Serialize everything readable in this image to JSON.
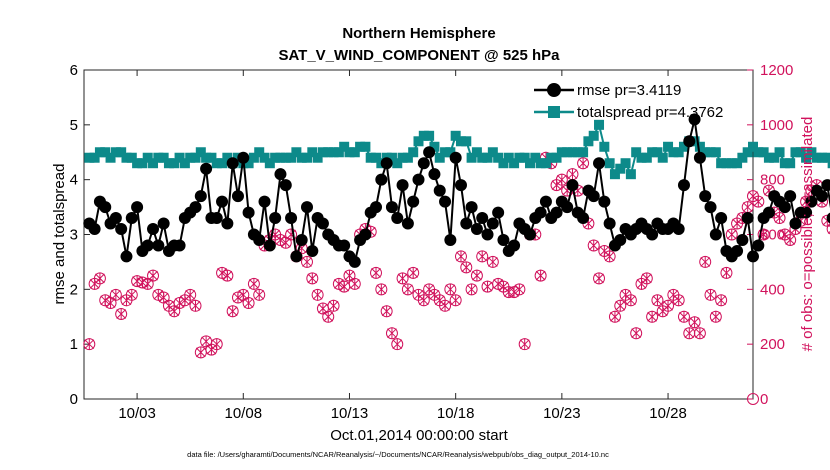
{
  "chart_data": {
    "type": "line",
    "title": "Northern Hemisphere",
    "subtitle": "SAT_V_WIND_COMPONENT @ 525 hPa",
    "xlabel": "Oct.01,2014 00:00:00 start",
    "ylabel": "rmse and totalspread",
    "ylabel_right": "# of obs: o=possible; ×=assimilated",
    "xlim": [
      0.5,
      32.0
    ],
    "ylim": [
      0,
      6
    ],
    "ylim_right": [
      0,
      1200
    ],
    "x_ticks": [
      3,
      8,
      13,
      18,
      23,
      28
    ],
    "x_tick_labels": [
      "10/03",
      "10/08",
      "10/13",
      "10/18",
      "10/23",
      "10/28"
    ],
    "y_ticks": [
      0,
      1,
      2,
      3,
      4,
      5,
      6
    ],
    "y_tick_labels": [
      "0",
      "1",
      "2",
      "3",
      "4",
      "5",
      "6"
    ],
    "y_right_ticks": [
      0,
      200,
      400,
      600,
      800,
      1000,
      1200
    ],
    "y_right_tick_labels": [
      "0",
      "200",
      "400",
      "600",
      "800",
      "1000",
      "1200"
    ],
    "time_step_days": 0.25,
    "time_start": 0.75,
    "series": [
      {
        "name": "rmse",
        "legend": "rmse pr=3.4119",
        "color": "#000000",
        "marker": "circle",
        "axis": "left",
        "values": [
          3.2,
          3.1,
          3.6,
          3.5,
          3.2,
          3.3,
          3.1,
          2.6,
          3.3,
          3.5,
          2.7,
          2.8,
          3.1,
          2.8,
          3.2,
          2.7,
          2.8,
          2.8,
          3.3,
          3.4,
          3.5,
          3.7,
          4.2,
          3.3,
          3.3,
          3.6,
          3.2,
          4.3,
          3.7,
          4.4,
          3.4,
          3.0,
          2.9,
          3.6,
          2.8,
          3.3,
          4.1,
          3.9,
          3.3,
          2.6,
          2.9,
          3.5,
          2.7,
          3.3,
          3.2,
          3.0,
          2.9,
          2.8,
          2.8,
          2.6,
          2.5,
          2.9,
          3.0,
          3.4,
          3.5,
          4.0,
          4.3,
          3.5,
          3.3,
          3.9,
          3.2,
          3.6,
          4.0,
          4.3,
          4.5,
          4.1,
          3.8,
          3.6,
          2.9,
          4.4,
          3.9,
          3.2,
          3.5,
          3.1,
          3.3,
          3.0,
          3.2,
          3.4,
          2.9,
          2.7,
          2.8,
          3.2,
          3.1,
          3.0,
          3.3,
          3.4,
          3.6,
          3.3,
          3.4,
          3.6,
          3.5,
          3.9,
          3.4,
          3.3,
          3.8,
          3.7,
          4.3,
          3.6,
          3.2,
          2.8,
          2.9,
          3.1,
          3.0,
          3.1,
          3.2,
          3.1,
          3.0,
          3.2,
          3.1,
          3.1,
          3.2,
          3.1,
          3.9,
          4.7,
          5.1,
          4.4,
          3.7,
          3.5,
          3.0,
          3.3,
          2.7,
          2.6,
          2.7,
          2.9,
          3.3,
          2.6,
          2.8,
          3.3,
          3.4,
          3.7,
          3.6,
          3.5,
          3.7,
          3.2,
          3.4,
          3.4,
          3.6,
          3.8,
          3.7,
          3.9,
          3.3,
          3.4,
          3.5,
          3.9,
          3.6,
          4.0,
          3.9,
          3.8,
          5.2,
          3.9,
          4.0,
          3.5,
          3.6,
          3.7,
          3.6,
          3.8
        ]
      },
      {
        "name": "totalspread",
        "legend": "totalspread pr=4.3762",
        "color": "#0d8a8a",
        "marker": "square",
        "axis": "left",
        "values": [
          4.4,
          4.4,
          4.5,
          4.5,
          4.4,
          4.5,
          4.5,
          4.4,
          4.4,
          4.3,
          4.3,
          4.4,
          4.3,
          4.4,
          4.4,
          4.3,
          4.3,
          4.4,
          4.3,
          4.4,
          4.4,
          4.5,
          4.4,
          4.4,
          4.3,
          4.3,
          4.4,
          4.3,
          4.4,
          4.3,
          4.3,
          4.4,
          4.5,
          4.4,
          4.3,
          4.4,
          4.4,
          4.4,
          4.4,
          4.5,
          4.4,
          4.4,
          4.5,
          4.4,
          4.5,
          4.5,
          4.5,
          4.5,
          4.6,
          4.5,
          4.5,
          4.6,
          4.6,
          4.4,
          4.4,
          4.3,
          4.4,
          4.4,
          4.3,
          4.4,
          4.4,
          4.5,
          4.7,
          4.8,
          4.8,
          4.6,
          4.4,
          4.5,
          4.5,
          4.8,
          4.7,
          4.7,
          4.4,
          4.5,
          4.4,
          4.4,
          4.5,
          4.4,
          4.3,
          4.4,
          4.3,
          4.4,
          4.4,
          4.3,
          4.4,
          4.3,
          4.3,
          4.4,
          4.4,
          4.5,
          4.5,
          4.5,
          4.5,
          4.5,
          4.7,
          4.8,
          5.0,
          4.6,
          4.3,
          4.1,
          4.2,
          4.3,
          4.1,
          4.5,
          4.4,
          4.4,
          4.5,
          4.5,
          4.4,
          4.6,
          4.5,
          4.5,
          4.6,
          4.7,
          4.7,
          4.6,
          4.5,
          4.5,
          4.5,
          4.3,
          4.3,
          4.3,
          4.3,
          4.4,
          4.5,
          4.6,
          4.5,
          4.5,
          4.4,
          4.4,
          4.5,
          4.3,
          4.3,
          4.5,
          4.5,
          4.4,
          4.5,
          4.4,
          4.4,
          4.4,
          4.3,
          4.4,
          4.4,
          4.5,
          4.3,
          4.2,
          4.2,
          4.3,
          4.4,
          4.6,
          4.6,
          4.5,
          4.6,
          4.6,
          4.7,
          4.9
        ]
      },
      {
        "name": "obs possible",
        "color": "#d1125c",
        "marker": "circle-open",
        "axis": "right",
        "values": [
          200,
          420,
          440,
          360,
          350,
          380,
          310,
          360,
          380,
          430,
          425,
          420,
          450,
          380,
          370,
          340,
          320,
          350,
          360,
          380,
          340,
          170,
          210,
          180,
          200,
          460,
          450,
          320,
          370,
          380,
          350,
          420,
          380,
          560,
          580,
          600,
          580,
          570,
          600,
          520,
          550,
          500,
          440,
          380,
          330,
          300,
          340,
          420,
          410,
          450,
          420,
          600,
          620,
          610,
          460,
          400,
          320,
          240,
          200,
          440,
          400,
          460,
          380,
          360,
          400,
          380,
          360,
          340,
          400,
          360,
          520,
          480,
          400,
          450,
          520,
          410,
          500,
          420,
          410,
          390,
          390,
          400,
          200,
          600,
          600,
          450,
          880,
          860,
          780,
          800,
          760,
          820,
          760,
          860,
          640,
          560,
          440,
          540,
          520,
          300,
          340,
          380,
          360,
          240,
          420,
          440,
          300,
          360,
          320,
          340,
          380,
          360,
          300,
          240,
          280,
          240,
          500,
          380,
          300,
          360,
          460,
          600,
          640,
          660,
          700,
          740,
          720,
          600,
          760,
          680,
          660,
          600,
          580,
          620,
          650,
          720,
          760,
          780,
          720,
          650,
          620,
          600,
          760,
          740,
          880,
          780,
          800,
          760,
          820,
          760,
          760,
          700,
          610,
          600
        ]
      },
      {
        "name": "obs assimilated",
        "color": "#d1125c",
        "marker": "x",
        "axis": "right",
        "values": [
          200,
          420,
          440,
          360,
          350,
          380,
          310,
          360,
          380,
          430,
          425,
          420,
          450,
          380,
          370,
          340,
          320,
          350,
          360,
          380,
          340,
          170,
          210,
          180,
          200,
          460,
          450,
          320,
          370,
          380,
          350,
          420,
          380,
          560,
          580,
          600,
          580,
          570,
          600,
          520,
          550,
          500,
          440,
          380,
          330,
          300,
          340,
          420,
          410,
          450,
          420,
          600,
          620,
          610,
          460,
          400,
          320,
          240,
          200,
          440,
          400,
          460,
          380,
          360,
          400,
          380,
          360,
          340,
          400,
          360,
          520,
          480,
          400,
          450,
          520,
          410,
          500,
          420,
          410,
          390,
          390,
          400,
          200,
          600,
          600,
          450,
          880,
          860,
          780,
          800,
          760,
          820,
          760,
          860,
          640,
          560,
          440,
          540,
          520,
          300,
          340,
          380,
          360,
          240,
          420,
          440,
          300,
          360,
          320,
          340,
          380,
          360,
          300,
          240,
          280,
          240,
          500,
          380,
          300,
          360,
          460,
          600,
          640,
          660,
          700,
          740,
          720,
          600,
          760,
          680,
          660,
          600,
          580,
          620,
          650,
          720,
          760,
          780,
          720,
          650,
          620,
          600,
          760,
          740,
          880,
          780,
          800,
          760,
          820,
          760,
          760,
          700,
          610,
          600
        ]
      }
    ],
    "last_point_right": 0,
    "footnote": "data file: /Users/gharamti/Documents/NCAR/Reanalysis/~/Documents/NCAR/Reanalysis/webpub/obs_diag_output_2014-10.nc"
  }
}
